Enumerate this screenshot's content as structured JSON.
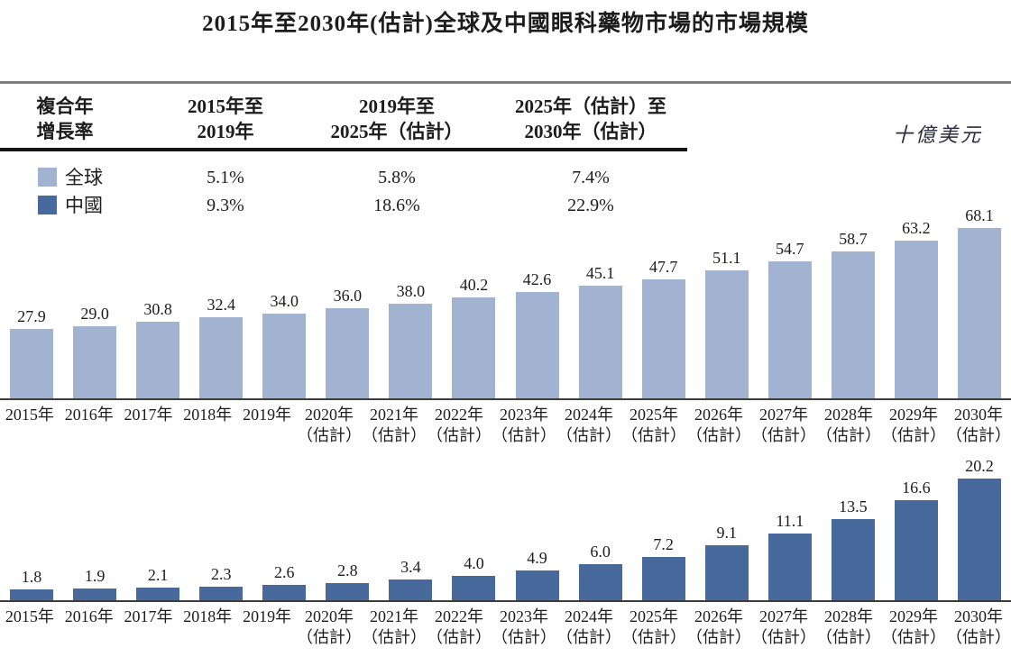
{
  "title": "2015年至2030年(估計)全球及中國眼科藥物市場的市場規模",
  "unit_label": "十億美元",
  "colors": {
    "global_bar": "#a2b2d1",
    "china_bar": "#47699c",
    "axis_line": "#3c3c3c",
    "header_rule_gray": "#7f7f7f",
    "header_rule_black": "#151515"
  },
  "cagr_table": {
    "row_header_line1": "複合年",
    "row_header_line2": "增長率",
    "columns": [
      {
        "line1": "2015年至",
        "line2": "2019年"
      },
      {
        "line1": "2019年至",
        "line2": "2025年（估計）"
      },
      {
        "line1": "2025年（估計）至",
        "line2": "2030年（估計）"
      }
    ],
    "rows": [
      {
        "legend": "全球",
        "series": "global",
        "values": [
          "5.1%",
          "5.8%",
          "7.4%"
        ]
      },
      {
        "legend": "中國",
        "series": "china",
        "values": [
          "9.3%",
          "18.6%",
          "22.9%"
        ]
      }
    ]
  },
  "chart_data": [
    {
      "type": "bar",
      "name": "全球",
      "title": "全球眼科藥物市場規模",
      "ylabel": "十億美元",
      "color": "#a2b2d1",
      "categories": [
        {
          "year": "2015年",
          "note": ""
        },
        {
          "year": "2016年",
          "note": ""
        },
        {
          "year": "2017年",
          "note": ""
        },
        {
          "year": "2018年",
          "note": ""
        },
        {
          "year": "2019年",
          "note": ""
        },
        {
          "year": "2020年",
          "note": "（估計）"
        },
        {
          "year": "2021年",
          "note": "（估計）"
        },
        {
          "year": "2022年",
          "note": "（估計）"
        },
        {
          "year": "2023年",
          "note": "（估計）"
        },
        {
          "year": "2024年",
          "note": "（估計）"
        },
        {
          "year": "2025年",
          "note": "（估計）"
        },
        {
          "year": "2026年",
          "note": "（估計）"
        },
        {
          "year": "2027年",
          "note": "（估計）"
        },
        {
          "year": "2028年",
          "note": "（估計）"
        },
        {
          "year": "2029年",
          "note": "（估計）"
        },
        {
          "year": "2030年",
          "note": "（估計）"
        }
      ],
      "values": [
        27.9,
        29.0,
        30.8,
        32.4,
        34.0,
        36.0,
        38.0,
        40.2,
        42.6,
        45.1,
        47.7,
        51.1,
        54.7,
        58.7,
        63.2,
        68.1
      ],
      "ylim": [
        0,
        70
      ],
      "grid": false,
      "value_labels_shown": true
    },
    {
      "type": "bar",
      "name": "中國",
      "title": "中國眼科藥物市場規模",
      "ylabel": "十億美元",
      "color": "#47699c",
      "categories": [
        {
          "year": "2015年",
          "note": ""
        },
        {
          "year": "2016年",
          "note": ""
        },
        {
          "year": "2017年",
          "note": ""
        },
        {
          "year": "2018年",
          "note": ""
        },
        {
          "year": "2019年",
          "note": ""
        },
        {
          "year": "2020年",
          "note": "（估計）"
        },
        {
          "year": "2021年",
          "note": "（估計）"
        },
        {
          "year": "2022年",
          "note": "（估計）"
        },
        {
          "year": "2023年",
          "note": "（估計）"
        },
        {
          "year": "2024年",
          "note": "（估計）"
        },
        {
          "year": "2025年",
          "note": "（估計）"
        },
        {
          "year": "2026年",
          "note": "（估計）"
        },
        {
          "year": "2027年",
          "note": "（估計）"
        },
        {
          "year": "2028年",
          "note": "（估計）"
        },
        {
          "year": "2029年",
          "note": "（估計）"
        },
        {
          "year": "2030年",
          "note": "（估計）"
        }
      ],
      "values": [
        1.8,
        1.9,
        2.1,
        2.3,
        2.6,
        2.8,
        3.4,
        4.0,
        4.9,
        6.0,
        7.2,
        9.1,
        11.1,
        13.5,
        16.6,
        20.2
      ],
      "ylim": [
        0,
        21
      ],
      "grid": false,
      "value_labels_shown": true
    }
  ]
}
